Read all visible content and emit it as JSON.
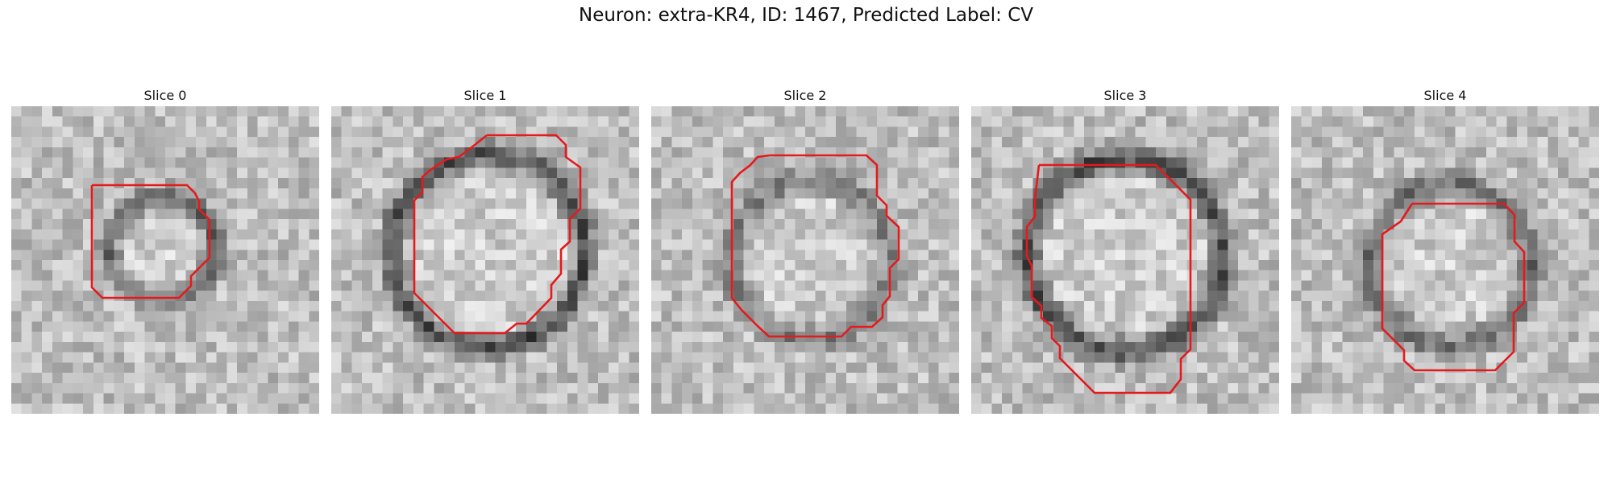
{
  "figure": {
    "title": "Neuron: extra-KR4, ID: 1467, Predicted Label: CV",
    "contour_color": "#e41a1c"
  },
  "slices": [
    {
      "title": "Slice 0",
      "ring": {
        "cx": 14.2,
        "cy": 13.4,
        "r": 6.0,
        "inner": 4.3,
        "dark": 95
      }
    },
    {
      "title": "Slice 1",
      "ring": {
        "cx": 14.8,
        "cy": 13.6,
        "r": 10.5,
        "inner": 8.4,
        "dark": 120
      }
    },
    {
      "title": "Slice 2",
      "ring": {
        "cx": 15.0,
        "cy": 14.5,
        "r": 9.0,
        "inner": 6.5,
        "dark": 70
      }
    },
    {
      "title": "Slice 3",
      "ring": {
        "cx": 14.5,
        "cy": 14.0,
        "r": 10.8,
        "inner": 8.2,
        "dark": 120
      }
    },
    {
      "title": "Slice 4",
      "ring": {
        "cx": 15.0,
        "cy": 15.0,
        "r": 9.0,
        "inner": 6.6,
        "dark": 90
      }
    }
  ]
}
